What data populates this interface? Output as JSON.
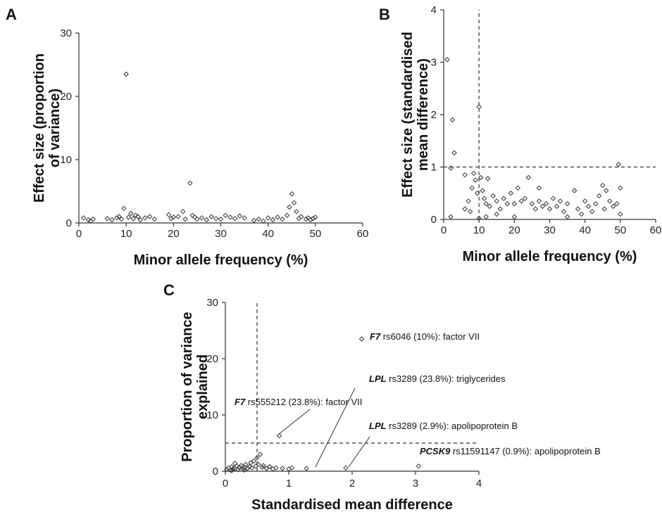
{
  "chart_data": [
    {
      "id": "A",
      "panel_label": "A",
      "type": "scatter",
      "xlabel": "Minor allele frequency (%)",
      "ylabel_lines": [
        "Effect size (proportion",
        "of variance)"
      ],
      "xlim": [
        0,
        60
      ],
      "ylim": [
        0,
        30
      ],
      "xticks": [
        0,
        10,
        20,
        30,
        40,
        50,
        60
      ],
      "yticks": [
        0,
        10,
        20,
        30
      ],
      "points": [
        [
          1,
          0.8
        ],
        [
          2,
          0.5
        ],
        [
          2.5,
          0.3
        ],
        [
          3,
          0.6
        ],
        [
          6,
          0.7
        ],
        [
          7,
          0.5
        ],
        [
          8,
          0.8
        ],
        [
          8.5,
          1.0
        ],
        [
          9,
          0.6
        ],
        [
          9.5,
          2.3
        ],
        [
          10,
          23.5
        ],
        [
          10.5,
          0.9
        ],
        [
          11,
          1.5
        ],
        [
          11.5,
          0.7
        ],
        [
          12,
          1.2
        ],
        [
          12.5,
          1.0
        ],
        [
          13,
          0.5
        ],
        [
          14,
          0.8
        ],
        [
          15,
          1.0
        ],
        [
          16,
          0.6
        ],
        [
          19,
          1.3
        ],
        [
          19.5,
          0.7
        ],
        [
          20,
          0.9
        ],
        [
          21,
          1.0
        ],
        [
          22,
          1.8
        ],
        [
          22.5,
          0.6
        ],
        [
          23.5,
          6.3
        ],
        [
          24,
          1.2
        ],
        [
          24.5,
          0.9
        ],
        [
          25,
          0.6
        ],
        [
          26,
          0.8
        ],
        [
          27,
          0.5
        ],
        [
          28,
          1.0
        ],
        [
          29,
          0.7
        ],
        [
          30,
          0.6
        ],
        [
          31,
          1.2
        ],
        [
          32,
          0.9
        ],
        [
          33,
          0.7
        ],
        [
          34,
          1.1
        ],
        [
          35,
          0.8
        ],
        [
          37,
          0.4
        ],
        [
          38,
          0.6
        ],
        [
          39,
          0.3
        ],
        [
          40,
          0.8
        ],
        [
          41,
          0.5
        ],
        [
          42,
          0.9
        ],
        [
          43,
          0.6
        ],
        [
          44,
          1.2
        ],
        [
          44.5,
          2.5
        ],
        [
          45,
          4.6
        ],
        [
          45.5,
          3.2
        ],
        [
          46,
          1.8
        ],
        [
          46.5,
          0.7
        ],
        [
          47,
          1.0
        ],
        [
          48,
          0.6
        ],
        [
          48.5,
          0.8
        ],
        [
          49,
          0.5
        ],
        [
          49.5,
          0.7
        ],
        [
          50,
          0.9
        ]
      ]
    },
    {
      "id": "B",
      "panel_label": "B",
      "type": "scatter",
      "xlabel": "Minor allele frequency (%)",
      "ylabel_lines": [
        "Effect size (standardised",
        "mean difference)"
      ],
      "xlim": [
        0,
        60
      ],
      "ylim": [
        0,
        4
      ],
      "xticks": [
        0,
        10,
        20,
        30,
        40,
        50,
        60
      ],
      "yticks": [
        0,
        1,
        2,
        3,
        4
      ],
      "vline_x": 10,
      "hline_y": 1,
      "points": [
        [
          1,
          3.05
        ],
        [
          2,
          0.98
        ],
        [
          2.5,
          1.9
        ],
        [
          3,
          1.27
        ],
        [
          2,
          0.05
        ],
        [
          6,
          0.85
        ],
        [
          7,
          0.35
        ],
        [
          8,
          0.6
        ],
        [
          8.5,
          0.88
        ],
        [
          9,
          0.75
        ],
        [
          9.5,
          0.5
        ],
        [
          10,
          2.15
        ],
        [
          10.5,
          0.8
        ],
        [
          11,
          0.55
        ],
        [
          11.5,
          0.4
        ],
        [
          12,
          0.3
        ],
        [
          12.5,
          0.78
        ],
        [
          13,
          0.25
        ],
        [
          14,
          0.45
        ],
        [
          15,
          0.35
        ],
        [
          16,
          0.2
        ],
        [
          17,
          0.4
        ],
        [
          18,
          0.3
        ],
        [
          19,
          0.5
        ],
        [
          20,
          0.3
        ],
        [
          21,
          0.6
        ],
        [
          22,
          0.35
        ],
        [
          23,
          0.4
        ],
        [
          24,
          0.8
        ],
        [
          25,
          0.3
        ],
        [
          26,
          0.2
        ],
        [
          27,
          0.35
        ],
        [
          28,
          0.25
        ],
        [
          29,
          0.3
        ],
        [
          30,
          0.2
        ],
        [
          31,
          0.4
        ],
        [
          32,
          0.25
        ],
        [
          33,
          0.35
        ],
        [
          34,
          0.15
        ],
        [
          35,
          0.3
        ],
        [
          37,
          0.55
        ],
        [
          38,
          0.2
        ],
        [
          39,
          0.1
        ],
        [
          40,
          0.35
        ],
        [
          41,
          0.25
        ],
        [
          42,
          0.15
        ],
        [
          43,
          0.3
        ],
        [
          44,
          0.45
        ],
        [
          45,
          0.65
        ],
        [
          45.5,
          0.2
        ],
        [
          46,
          0.55
        ],
        [
          47,
          0.35
        ],
        [
          48,
          0.25
        ],
        [
          49,
          0.3
        ],
        [
          49.5,
          1.05
        ],
        [
          50,
          0.6
        ],
        [
          50,
          0.1
        ],
        [
          6,
          0.2
        ],
        [
          12,
          0.05
        ],
        [
          20,
          0.05
        ],
        [
          35,
          0.05
        ],
        [
          7.5,
          0.15
        ],
        [
          15,
          0.1
        ],
        [
          27,
          0.6
        ],
        [
          10,
          0.02
        ]
      ]
    },
    {
      "id": "C",
      "panel_label": "C",
      "type": "scatter",
      "xlabel": "Standardised mean difference",
      "ylabel_lines": [
        "Proportion of variance",
        "explained"
      ],
      "xlim": [
        0,
        4
      ],
      "ylim": [
        0,
        30
      ],
      "xticks": [
        0,
        1,
        2,
        3,
        4
      ],
      "yticks": [
        0,
        10,
        20,
        30
      ],
      "vline_x": 0.5,
      "hline_y": 5,
      "points": [
        [
          0.02,
          0.3
        ],
        [
          0.05,
          0.6
        ],
        [
          0.08,
          0.2
        ],
        [
          0.1,
          0.8
        ],
        [
          0.12,
          0.4
        ],
        [
          0.15,
          0.5
        ],
        [
          0.18,
          0.9
        ],
        [
          0.2,
          0.3
        ],
        [
          0.22,
          0.7
        ],
        [
          0.25,
          1.0
        ],
        [
          0.28,
          0.4
        ],
        [
          0.3,
          0.6
        ],
        [
          0.32,
          1.2
        ],
        [
          0.35,
          0.5
        ],
        [
          0.38,
          0.8
        ],
        [
          0.4,
          1.5
        ],
        [
          0.42,
          0.6
        ],
        [
          0.45,
          1.8
        ],
        [
          0.48,
          0.9
        ],
        [
          0.5,
          2.4
        ],
        [
          0.52,
          1.2
        ],
        [
          0.55,
          3.0
        ],
        [
          0.58,
          0.7
        ],
        [
          0.6,
          1.0
        ],
        [
          0.65,
          0.5
        ],
        [
          0.7,
          0.8
        ],
        [
          0.75,
          0.4
        ],
        [
          0.8,
          0.6
        ],
        [
          0.85,
          6.3
        ],
        [
          0.9,
          0.5
        ],
        [
          1.0,
          0.4
        ],
        [
          1.05,
          0.6
        ],
        [
          1.28,
          0.5
        ],
        [
          1.9,
          0.6
        ],
        [
          2.15,
          23.5
        ],
        [
          3.05,
          0.9
        ],
        [
          0.1,
          0.1
        ],
        [
          0.3,
          0.2
        ],
        [
          0.15,
          1.4
        ]
      ],
      "annotations": [
        {
          "gene": "F7",
          "text": " rs6046 (10%): factor VII",
          "x": 2.15,
          "y": 23.5
        },
        {
          "gene": "LPL",
          "text": " rs3289 (23.8%): triglycerides",
          "x": 1.28,
          "y": 0.5
        },
        {
          "gene": "F7",
          "text": " rs555212 (23.8%): factor VII",
          "x": 0.85,
          "y": 6.3
        },
        {
          "gene": "LPL",
          "text": " rs3289 (2.9%): apolipoprotein B",
          "x": 1.9,
          "y": 0.6
        },
        {
          "gene": "PCSK9",
          "text": " rs11591147 (0.9%): apolipoprotein B",
          "x": 3.05,
          "y": 0.9
        }
      ]
    }
  ]
}
